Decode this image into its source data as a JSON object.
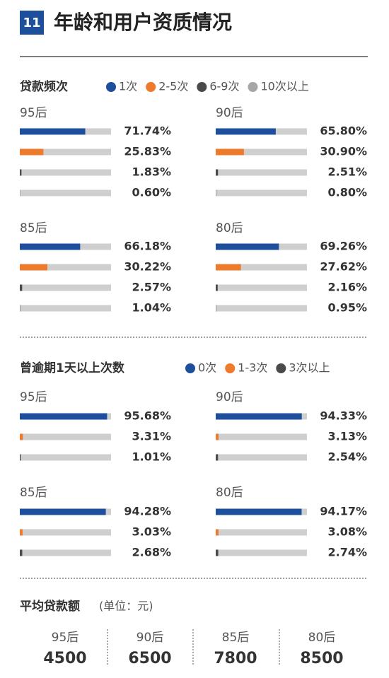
{
  "header": {
    "number": "11",
    "title": "年龄和用户资质情况"
  },
  "chart_data": [
    {
      "type": "bar",
      "title": "贷款频次",
      "orientation": "horizontal",
      "xlim": [
        0,
        100
      ],
      "categories": [
        "95后",
        "90后",
        "85后",
        "80后"
      ],
      "series": [
        {
          "name": "1次",
          "color": "#1d4f9c",
          "values": [
            71.74,
            65.8,
            66.18,
            69.26
          ],
          "value_labels": [
            "71.74%",
            "65.80%",
            "66.18%",
            "69.26%"
          ]
        },
        {
          "name": "2-5次",
          "color": "#ee7a2c",
          "values": [
            25.83,
            30.9,
            30.22,
            27.62
          ],
          "value_labels": [
            "25.83%",
            "30.90%",
            "30.22%",
            "27.62%"
          ]
        },
        {
          "name": "6-9次",
          "color": "#4a4a4a",
          "values": [
            1.83,
            2.51,
            2.57,
            2.16
          ],
          "value_labels": [
            "1.83%",
            "2.51%",
            "2.57%",
            "2.16%"
          ]
        },
        {
          "name": "10次以上",
          "color": "#a6a6a6",
          "values": [
            0.6,
            0.8,
            1.04,
            0.95
          ],
          "value_labels": [
            "0.60%",
            "0.80%",
            "1.04%",
            "0.95%"
          ]
        }
      ]
    },
    {
      "type": "bar",
      "title": "曾逾期1天以上次数",
      "orientation": "horizontal",
      "xlim": [
        0,
        100
      ],
      "categories": [
        "95后",
        "90后",
        "85后",
        "80后"
      ],
      "series": [
        {
          "name": "0次",
          "color": "#1d4f9c",
          "values": [
            95.68,
            94.33,
            94.28,
            94.17
          ],
          "value_labels": [
            "95.68%",
            "94.33%",
            "94.28%",
            "94.17%"
          ]
        },
        {
          "name": "1-3次",
          "color": "#ee7a2c",
          "values": [
            3.31,
            3.13,
            3.03,
            3.08
          ],
          "value_labels": [
            "3.31%",
            "3.13%",
            "3.03%",
            "3.08%"
          ]
        },
        {
          "name": "3次以上",
          "color": "#4a4a4a",
          "values": [
            1.01,
            2.54,
            2.68,
            2.74
          ],
          "value_labels": [
            "1.01%",
            "2.54%",
            "2.68%",
            "2.74%"
          ]
        }
      ]
    }
  ],
  "average_loan": {
    "title": "平均贷款额",
    "unit": "(单位：元)",
    "items": [
      {
        "label": "95后",
        "value": 4500
      },
      {
        "label": "90后",
        "value": 6500
      },
      {
        "label": "85后",
        "value": 7800
      },
      {
        "label": "80后",
        "value": 8500
      }
    ]
  }
}
